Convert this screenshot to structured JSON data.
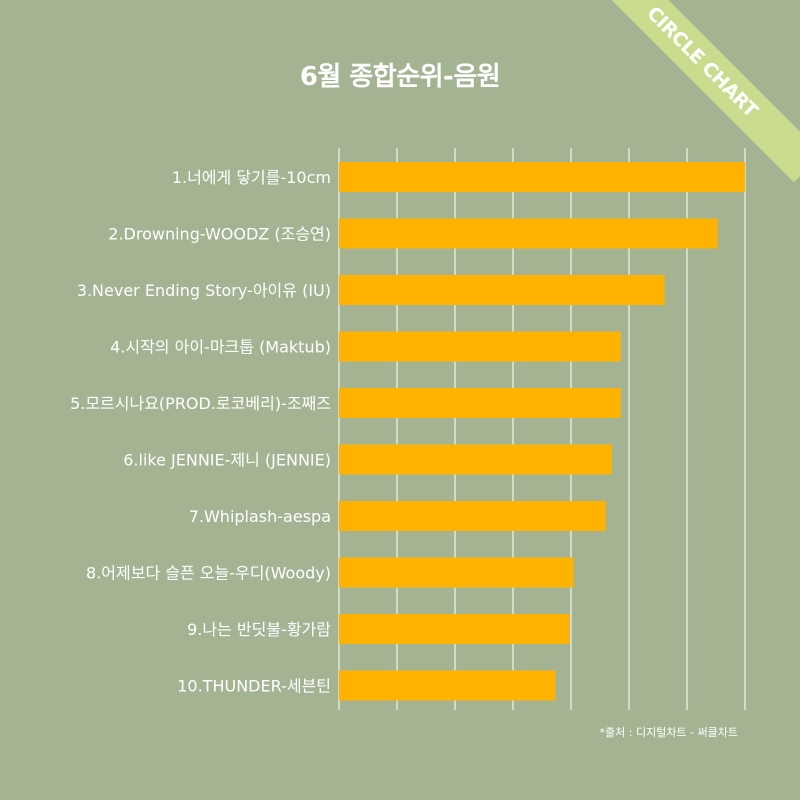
{
  "title": "6월 종합순위-음원",
  "ribbon": "CIRCLE CHART",
  "source": "*출처 : 디지털차트 - 써클차트",
  "colors": {
    "background": "#a4b493",
    "bar": "#ffb300",
    "ribbon": "#c9dc8e",
    "grid": "#ffffff"
  },
  "chart_data": {
    "type": "bar",
    "orientation": "horizontal",
    "categories": [
      "1.너에게 닿기를-10cm",
      "2.Drowning-WOODZ (조승연)",
      "3.Never Ending Story-아이유 (IU)",
      "4.시작의 아이-마크툽 (Maktub)",
      "5.모르시나요(PROD.로코베리)-조째즈",
      "6.like JENNIE-제니 (JENNIE)",
      "7.Whiplash-aespa",
      "8.어제보다 슬픈 오늘-우디(Woody)",
      "9.나는 반딧불-황가람",
      "10.THUNDER-세븐틴"
    ],
    "values": [
      100,
      93.3,
      80.2,
      69.4,
      69.4,
      67.2,
      65.7,
      57.8,
      56.8,
      53.3
    ],
    "xlim": [
      0,
      100
    ],
    "grid": true
  }
}
